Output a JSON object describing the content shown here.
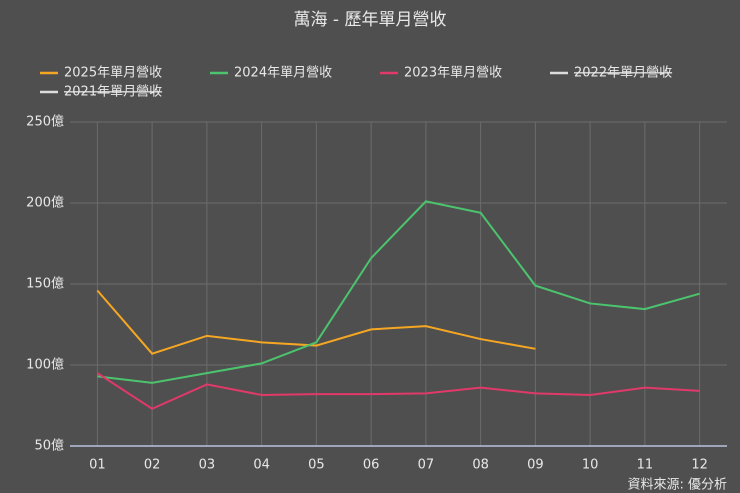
{
  "chart_data": {
    "type": "line",
    "title": "萬海 - 歷年單月營收",
    "categories": [
      "01",
      "02",
      "03",
      "04",
      "05",
      "06",
      "07",
      "08",
      "09",
      "10",
      "11",
      "12"
    ],
    "series": [
      {
        "name": "2025年單月營收",
        "color": "#f5a623",
        "values": [
          146,
          107,
          118,
          114,
          112,
          122,
          124,
          116,
          110,
          null,
          null,
          null
        ]
      },
      {
        "name": "2024年單月營收",
        "color": "#4cc46e",
        "values": [
          93,
          89,
          95,
          101,
          114,
          166,
          201,
          194,
          149,
          138,
          134.5,
          144
        ]
      },
      {
        "name": "2023年單月營收",
        "color": "#e0396a",
        "values": [
          95,
          73,
          88,
          81.5,
          82,
          82,
          82.5,
          86,
          82.5,
          81.5,
          86,
          84
        ]
      },
      {
        "name": "2022年單月營收",
        "color": "#dddddd",
        "hidden": true,
        "values": [
          null,
          null,
          null,
          null,
          null,
          null,
          null,
          null,
          null,
          null,
          null,
          null
        ]
      },
      {
        "name": "2021年單月營收",
        "color": "#dddddd",
        "hidden": true,
        "values": [
          null,
          null,
          null,
          null,
          null,
          null,
          null,
          null,
          null,
          null,
          null,
          null
        ]
      }
    ],
    "ylim": [
      50,
      250
    ],
    "yticks": [
      {
        "value": 50,
        "label": "50億"
      },
      {
        "value": 100,
        "label": "100億"
      },
      {
        "value": 150,
        "label": "150億"
      },
      {
        "value": 200,
        "label": "200億"
      },
      {
        "value": 250,
        "label": "250億"
      }
    ],
    "grid": true,
    "source": "資料來源: 優分析"
  }
}
